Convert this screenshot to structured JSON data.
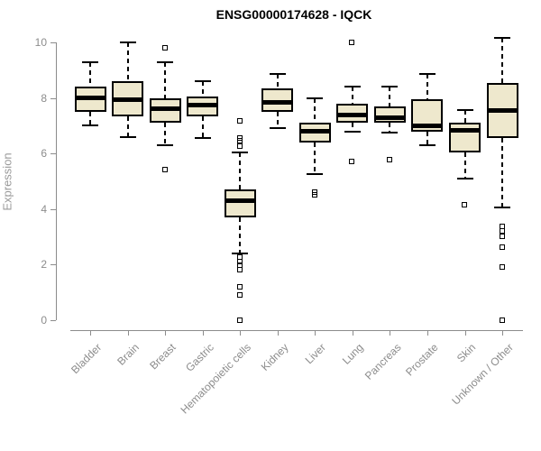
{
  "title": "ENSG00000174628 - IQCK",
  "chart_data": {
    "type": "boxplot",
    "title": "ENSG00000174628 - IQCK",
    "xlabel": "",
    "ylabel": "Expression",
    "ylim": [
      0,
      10
    ],
    "yticks": [
      0,
      2,
      4,
      6,
      8,
      10
    ],
    "grid": false,
    "legend": "none",
    "categories": [
      "Bladder",
      "Brain",
      "Breast",
      "Gastric",
      "Hematopoietic cells",
      "Kidney",
      "Liver",
      "Lung",
      "Pancreas",
      "Prostate",
      "Skin",
      "Unknown / Other"
    ],
    "series": [
      {
        "name": "Bladder",
        "low": 7.0,
        "q1": 7.5,
        "median": 8.0,
        "q3": 8.4,
        "high": 9.3,
        "outliers": []
      },
      {
        "name": "Brain",
        "low": 6.6,
        "q1": 7.35,
        "median": 7.95,
        "q3": 8.6,
        "high": 10.0,
        "outliers": []
      },
      {
        "name": "Breast",
        "low": 6.3,
        "q1": 7.1,
        "median": 7.6,
        "q3": 8.0,
        "high": 9.3,
        "outliers": [
          9.8,
          5.4
        ]
      },
      {
        "name": "Gastric",
        "low": 6.55,
        "q1": 7.35,
        "median": 7.75,
        "q3": 8.05,
        "high": 8.6,
        "outliers": []
      },
      {
        "name": "Hematopoietic cells",
        "low": 2.4,
        "q1": 3.7,
        "median": 4.3,
        "q3": 4.7,
        "high": 6.05,
        "outliers": [
          7.15,
          6.55,
          6.45,
          6.25,
          2.25,
          2.1,
          1.95,
          1.8,
          1.2,
          0.9,
          0.0
        ]
      },
      {
        "name": "Kidney",
        "low": 6.9,
        "q1": 7.5,
        "median": 7.85,
        "q3": 8.35,
        "high": 8.85,
        "outliers": []
      },
      {
        "name": "Liver",
        "low": 5.25,
        "q1": 6.4,
        "median": 6.8,
        "q3": 7.1,
        "high": 8.0,
        "outliers": [
          4.6,
          4.5
        ]
      },
      {
        "name": "Lung",
        "low": 6.8,
        "q1": 7.1,
        "median": 7.4,
        "q3": 7.8,
        "high": 8.4,
        "outliers": [
          10.0,
          5.7
        ]
      },
      {
        "name": "Pancreas",
        "low": 6.75,
        "q1": 7.1,
        "median": 7.3,
        "q3": 7.7,
        "high": 8.4,
        "outliers": [
          5.75
        ]
      },
      {
        "name": "Prostate",
        "low": 6.3,
        "q1": 6.8,
        "median": 7.0,
        "q3": 7.95,
        "high": 8.85,
        "outliers": []
      },
      {
        "name": "Skin",
        "low": 5.1,
        "q1": 6.05,
        "median": 6.85,
        "q3": 7.1,
        "high": 7.55,
        "outliers": [
          4.15
        ]
      },
      {
        "name": "Unknown / Other",
        "low": 4.05,
        "q1": 6.55,
        "median": 7.55,
        "q3": 8.55,
        "high": 10.15,
        "outliers": [
          3.35,
          3.2,
          3.0,
          2.6,
          1.9,
          0.0
        ]
      }
    ],
    "colors": {
      "box_fill": "#EEE8CD",
      "box_border": "#000000",
      "median": "#000000",
      "axis": "#8C8C8C",
      "tick_text": "#8C8C8C",
      "title_text": "#000000",
      "ylabel_text": "#999999"
    }
  }
}
